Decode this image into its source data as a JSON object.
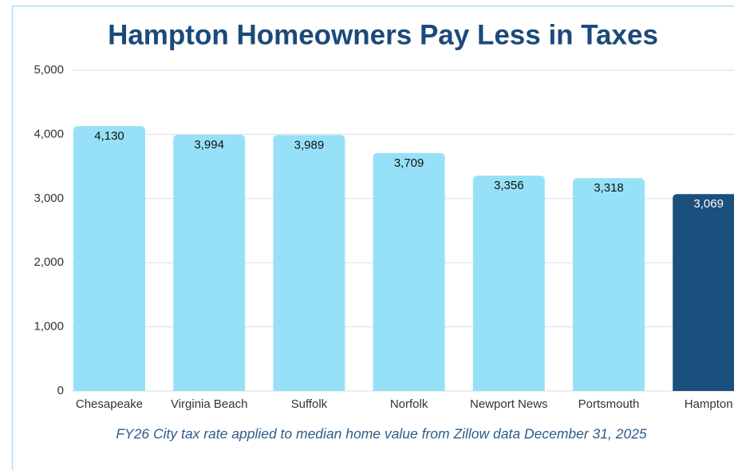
{
  "chart_data": {
    "type": "bar",
    "title": "Hampton Homeowners Pay Less in Taxes",
    "footnote": "FY26 City tax rate applied to median home value from Zillow data December 31, 2025",
    "categories": [
      "Chesapeake",
      "Virginia Beach",
      "Suffolk",
      "Norfolk",
      "Newport News",
      "Portsmouth",
      "Hampton"
    ],
    "values": [
      4130,
      3994,
      3989,
      3709,
      3356,
      3318,
      3069
    ],
    "value_labels": [
      "4,130",
      "3,994",
      "3,989",
      "3,709",
      "3,356",
      "3,318",
      "3,069"
    ],
    "colors": [
      "#97e1f8",
      "#97e1f8",
      "#97e1f8",
      "#97e1f8",
      "#97e1f8",
      "#97e1f8",
      "#1b4f7d"
    ],
    "ylim": [
      0,
      5000
    ],
    "yticks": [
      0,
      {
        "value": 1000,
        "label": "1,000"
      },
      {
        "value": 2000,
        "label": "2,000"
      },
      {
        "value": 3000,
        "label": "3,000"
      },
      {
        "value": 4000,
        "label": "4,000"
      },
      {
        "value": 5000,
        "label": "5,000"
      }
    ],
    "grid": true
  }
}
